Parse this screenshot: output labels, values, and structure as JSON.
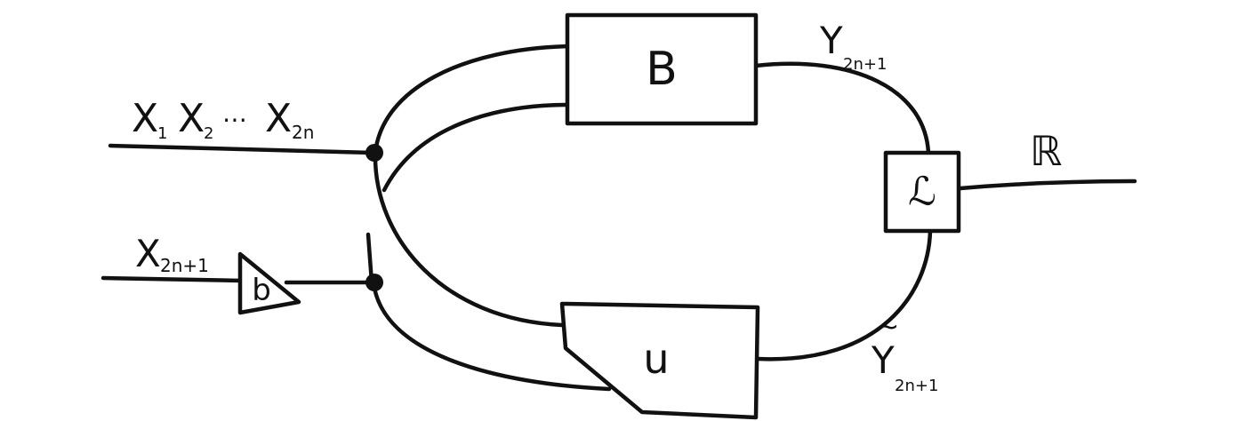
{
  "diagram": {
    "inputs": {
      "x_seq": {
        "x": "X",
        "sub1": "1",
        "sub2": "2",
        "ellipsis": "⋯",
        "sub_last": "2n"
      },
      "x_last": {
        "x": "X",
        "sub": "2n+1"
      }
    },
    "blocks": {
      "B": "B",
      "b": "b",
      "U": "u",
      "L": "ℒ"
    },
    "outputs": {
      "y": {
        "y": "Y",
        "sub": "2n+1"
      },
      "y_tilde": {
        "tilde": "~",
        "y": "Y",
        "sub": "2n+1"
      },
      "R": "ℝ"
    }
  }
}
